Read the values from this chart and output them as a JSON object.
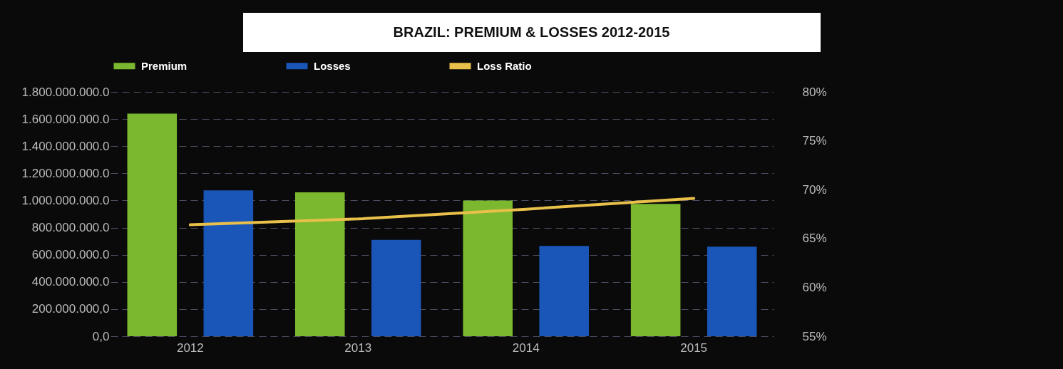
{
  "chart_data": {
    "type": "bar",
    "title": "BRAZIL: PREMIUM & LOSSES 2012-2015",
    "categories": [
      "2012",
      "2013",
      "2014",
      "2015"
    ],
    "series": [
      {
        "name": "Premium",
        "color": "#7cb82f",
        "values": [
          1640000000,
          1060000000,
          1000000000,
          975000000
        ]
      },
      {
        "name": "Losses",
        "color": "#1a55b8",
        "values": [
          1075000000,
          710000000,
          665000000,
          660000000
        ]
      },
      {
        "name": "Loss Ratio",
        "type": "line",
        "axis": "y2",
        "color": "#e8c04a",
        "values": [
          66.4,
          67.0,
          68.0,
          69.1
        ]
      }
    ],
    "ylim": [
      0,
      1800000000
    ],
    "yticks": [
      {
        "value": 0,
        "label": "0,0"
      },
      {
        "value": 200000000,
        "label": "200.000.000,0"
      },
      {
        "value": 400000000,
        "label": "400.000.000.0"
      },
      {
        "value": 600000000,
        "label": "600.000.000.0"
      },
      {
        "value": 800000000,
        "label": "800.000.000.0"
      },
      {
        "value": 1000000000,
        "label": "1.000.000.000.0"
      },
      {
        "value": 1200000000,
        "label": "1.200.000.000.0"
      },
      {
        "value": 1400000000,
        "label": "1.400.000.000.0"
      },
      {
        "value": 1600000000,
        "label": "1.600.000.000.0"
      },
      {
        "value": 1800000000,
        "label": "1.800.000.000.0"
      }
    ],
    "y2lim": [
      55,
      80
    ],
    "y2ticks": [
      {
        "value": 55,
        "label": "55%"
      },
      {
        "value": 60,
        "label": "60%"
      },
      {
        "value": 65,
        "label": "65%"
      },
      {
        "value": 70,
        "label": "70%"
      },
      {
        "value": 75,
        "label": "75%"
      },
      {
        "value": 80,
        "label": "80%"
      }
    ],
    "grid": "y",
    "legend": "top",
    "line_style": "solid",
    "marker": "none"
  }
}
